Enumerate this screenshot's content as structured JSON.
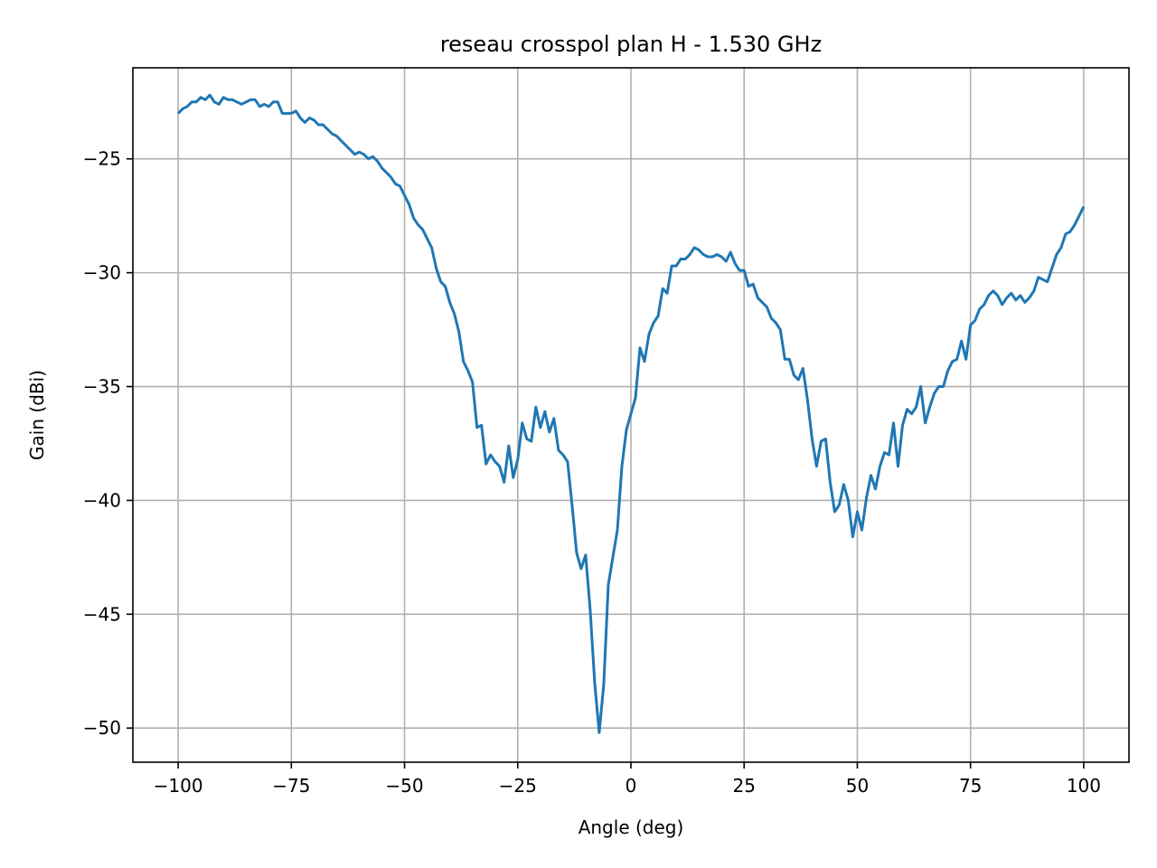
{
  "chart_data": {
    "type": "line",
    "title": "reseau crosspol plan H - 1.530 GHz",
    "xlabel": "Angle (deg)",
    "ylabel": "Gain (dBi)",
    "xlim": [
      -110,
      110
    ],
    "ylim": [
      -51.5,
      -21
    ],
    "xticks": [
      -100,
      -75,
      -50,
      -25,
      0,
      25,
      50,
      75,
      100
    ],
    "yticks": [
      -50,
      -45,
      -40,
      -35,
      -30,
      -25
    ],
    "grid": true,
    "colors": {
      "line": "#1f77b4",
      "grid": "#b0b0b0",
      "frame": "#000000"
    },
    "series": [
      {
        "x": [
          -100,
          -99,
          -98,
          -97,
          -96,
          -95,
          -94,
          -93,
          -92,
          -91,
          -90,
          -89,
          -88,
          -87,
          -86,
          -85,
          -84,
          -83,
          -82,
          -81,
          -80,
          -79,
          -78,
          -77,
          -76,
          -75,
          -74,
          -73,
          -72,
          -71,
          -70,
          -69,
          -68,
          -67,
          -66,
          -65,
          -64,
          -63,
          -62,
          -61,
          -60,
          -59,
          -58,
          -57,
          -56,
          -55,
          -54,
          -53,
          -52,
          -51,
          -50,
          -49,
          -48,
          -47,
          -46,
          -45,
          -44,
          -43,
          -42,
          -41,
          -40,
          -39,
          -38,
          -37,
          -36,
          -35,
          -34,
          -33,
          -32,
          -31,
          -30,
          -29,
          -28,
          -27,
          -26,
          -25,
          -24,
          -23,
          -22,
          -21,
          -20,
          -19,
          -18,
          -17,
          -16,
          -15,
          -14,
          -13,
          -12,
          -11,
          -10,
          -9,
          -8,
          -7,
          -6,
          -5,
          -4,
          -3,
          -2,
          -1,
          0,
          1,
          2,
          3,
          4,
          5,
          6,
          7,
          8,
          9,
          10,
          11,
          12,
          13,
          14,
          15,
          16,
          17,
          18,
          19,
          20,
          21,
          22,
          23,
          24,
          25,
          26,
          27,
          28,
          29,
          30,
          31,
          32,
          33,
          34,
          35,
          36,
          37,
          38,
          39,
          40,
          41,
          42,
          43,
          44,
          45,
          46,
          47,
          48,
          49,
          50,
          51,
          52,
          53,
          54,
          55,
          56,
          57,
          58,
          59,
          60,
          61,
          62,
          63,
          64,
          65,
          66,
          67,
          68,
          69,
          70,
          71,
          72,
          73,
          74,
          75,
          76,
          77,
          78,
          79,
          80,
          81,
          82,
          83,
          84,
          85,
          86,
          87,
          88,
          89,
          90,
          91,
          92,
          93,
          94,
          95,
          96,
          97,
          98,
          99,
          100
        ],
        "y": [
          -23.0,
          -22.8,
          -22.7,
          -22.5,
          -22.5,
          -22.3,
          -22.4,
          -22.2,
          -22.5,
          -22.6,
          -22.3,
          -22.4,
          -22.4,
          -22.5,
          -22.6,
          -22.5,
          -22.4,
          -22.4,
          -22.7,
          -22.6,
          -22.7,
          -22.5,
          -22.5,
          -23.0,
          -23.0,
          -23.0,
          -22.9,
          -23.2,
          -23.4,
          -23.2,
          -23.3,
          -23.5,
          -23.5,
          -23.7,
          -23.9,
          -24.0,
          -24.2,
          -24.4,
          -24.6,
          -24.8,
          -24.7,
          -24.8,
          -25.0,
          -24.9,
          -25.1,
          -25.4,
          -25.6,
          -25.8,
          -26.1,
          -26.2,
          -26.6,
          -27.0,
          -27.6,
          -27.9,
          -28.1,
          -28.5,
          -28.9,
          -29.8,
          -30.4,
          -30.6,
          -31.3,
          -31.8,
          -32.6,
          -33.9,
          -34.3,
          -34.8,
          -36.8,
          -36.7,
          -38.4,
          -38.0,
          -38.3,
          -38.5,
          -39.2,
          -37.6,
          -39.0,
          -38.2,
          -36.6,
          -37.3,
          -37.4,
          -35.9,
          -36.8,
          -36.1,
          -37.0,
          -36.4,
          -37.8,
          -38.0,
          -38.3,
          -40.2,
          -42.3,
          -43.0,
          -42.4,
          -44.8,
          -48.0,
          -50.2,
          -48.1,
          -43.7,
          -42.5,
          -41.3,
          -38.5,
          -36.9,
          -36.2,
          -35.5,
          -33.3,
          -33.9,
          -32.7,
          -32.2,
          -31.9,
          -30.7,
          -30.9,
          -29.7,
          -29.7,
          -29.4,
          -29.4,
          -29.2,
          -28.9,
          -29.0,
          -29.2,
          -29.3,
          -29.3,
          -29.2,
          -29.3,
          -29.5,
          -29.1,
          -29.6,
          -29.9,
          -29.9,
          -30.6,
          -30.5,
          -31.1,
          -31.3,
          -31.5,
          -32.0,
          -32.2,
          -32.5,
          -33.8,
          -33.8,
          -34.5,
          -34.7,
          -34.2,
          -35.6,
          -37.3,
          -38.5,
          -37.4,
          -37.3,
          -39.2,
          -40.5,
          -40.2,
          -39.3,
          -40.0,
          -41.6,
          -40.5,
          -41.3,
          -39.9,
          -38.9,
          -39.5,
          -38.5,
          -37.9,
          -38.0,
          -36.6,
          -38.5,
          -36.7,
          -36.0,
          -36.2,
          -35.9,
          -35.0,
          -36.6,
          -35.9,
          -35.3,
          -35.0,
          -35.0,
          -34.3,
          -33.9,
          -33.8,
          -33.0,
          -33.8,
          -32.3,
          -32.1,
          -31.6,
          -31.4,
          -31.0,
          -30.8,
          -31.0,
          -31.4,
          -31.1,
          -30.9,
          -31.2,
          -31.0,
          -31.3,
          -31.1,
          -30.8,
          -30.2,
          -30.3,
          -30.4,
          -29.8,
          -29.2,
          -28.9,
          -28.3,
          -28.2,
          -27.9,
          -27.5,
          -27.1
        ]
      }
    ]
  }
}
